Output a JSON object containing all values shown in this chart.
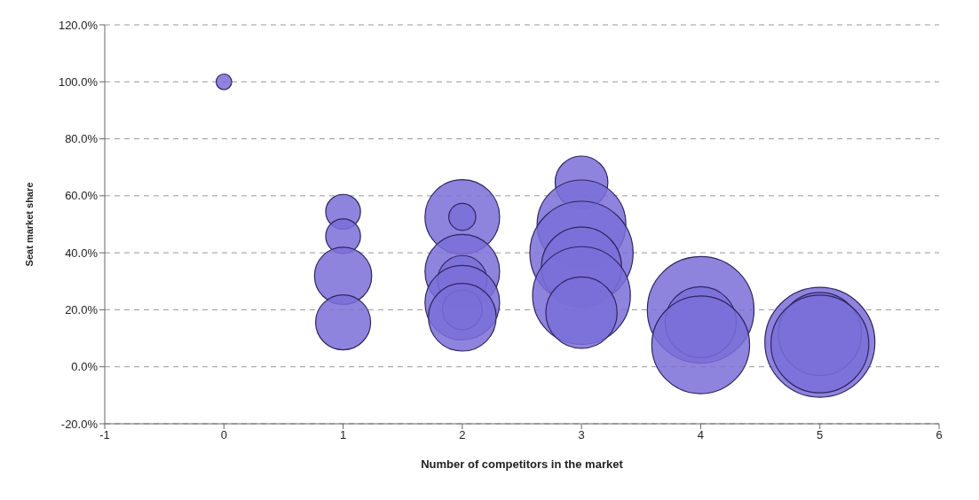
{
  "chart_data": {
    "type": "bubble",
    "xlabel": "Number of competitors in the market",
    "ylabel": "Seat market share",
    "xlim": [
      -1,
      6
    ],
    "xticks": [
      -1,
      0,
      1,
      2,
      3,
      4,
      5,
      6
    ],
    "ylim": [
      -20,
      120
    ],
    "yticks": [
      {
        "value": -20,
        "label": "-20.0%"
      },
      {
        "value": 0,
        "label": "0.0%"
      },
      {
        "value": 20,
        "label": "20.0%"
      },
      {
        "value": 40,
        "label": "40.0%"
      },
      {
        "value": 60,
        "label": "60.0%"
      },
      {
        "value": 80,
        "label": "80.0%"
      },
      {
        "value": 100,
        "label": "100.0%"
      },
      {
        "value": 120,
        "label": "120.0%"
      }
    ],
    "grid": "y",
    "legend": false,
    "series": [
      {
        "color": "#7a6fd8",
        "x": [
          0,
          1,
          1,
          1,
          1,
          2,
          2,
          2,
          2,
          2,
          2,
          2,
          3,
          3,
          3,
          3,
          3,
          3,
          4,
          4,
          4,
          5,
          5,
          5
        ],
        "values": [
          100,
          54.4,
          45.8,
          31.9,
          15.6,
          52.6,
          52.6,
          33.4,
          30.4,
          22.5,
          20,
          17.4,
          64.7,
          50,
          40,
          35,
          25,
          19,
          20,
          15.6,
          7.7,
          8.6,
          11.5,
          8
        ],
        "sizes": [
          0.02,
          0.1,
          0.1,
          0.27,
          0.25,
          0.46,
          0.06,
          0.46,
          0.2,
          0.46,
          0.13,
          0.38,
          0.23,
          0.65,
          0.88,
          0.53,
          0.79,
          0.42,
          0.94,
          0.42,
          0.79,
          1,
          0.57,
          0.79
        ]
      }
    ]
  }
}
